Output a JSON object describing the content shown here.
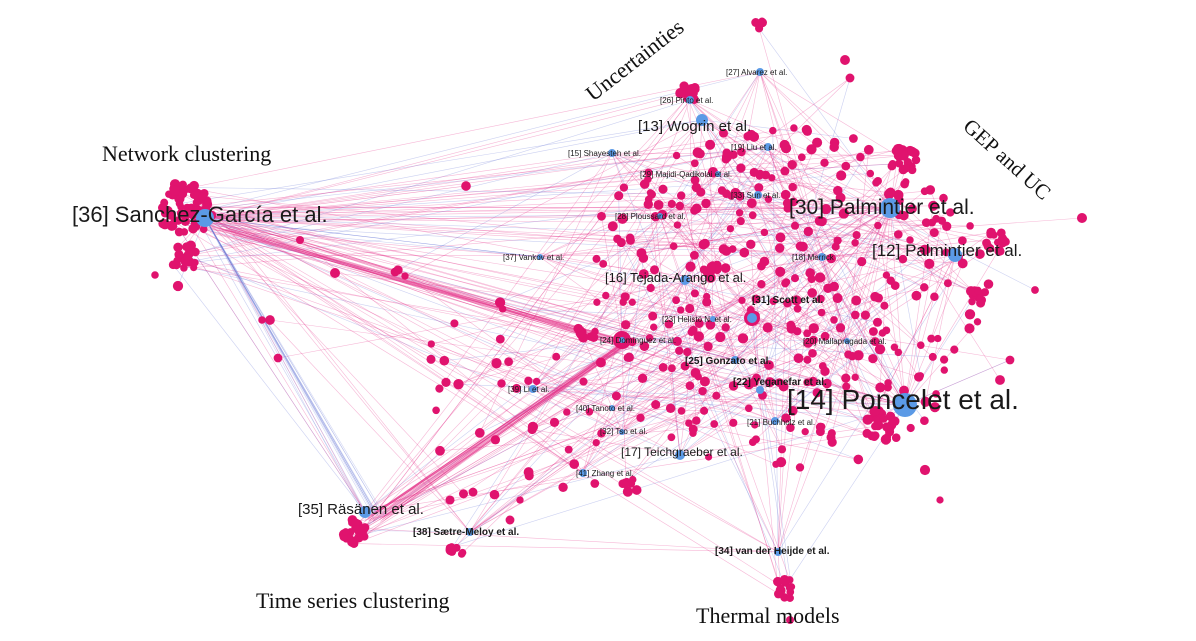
{
  "colors": {
    "cited_node": "#e0136e",
    "paper_node": "#5b9ae6",
    "edge_pink": "#e4328a",
    "edge_blue": "#6a79d8"
  },
  "cluster_labels": [
    {
      "id": "network-clustering",
      "text": "Network clustering"
    },
    {
      "id": "uncertainties",
      "text": "Uncertainties"
    },
    {
      "id": "gep-and-uc",
      "text": "GEP and UC"
    },
    {
      "id": "time-series-clustering",
      "text": "Time series clustering"
    },
    {
      "id": "thermal-models",
      "text": "Thermal models"
    }
  ],
  "papers": [
    {
      "id": "p36",
      "label": "[36] Sanchez-García et al."
    },
    {
      "id": "p14",
      "label": "[14] Poncelet et al."
    },
    {
      "id": "p30",
      "label": "[30] Palmintier et al."
    },
    {
      "id": "p12",
      "label": "[12] Palmintier et al."
    },
    {
      "id": "p13",
      "label": "[13] Wogrin et al."
    },
    {
      "id": "p16",
      "label": "[16] Tejada-Arango et al."
    },
    {
      "id": "p35",
      "label": "[35] Räsänen et al."
    },
    {
      "id": "p17",
      "label": "[17] Teichgraeber et al."
    },
    {
      "id": "p31",
      "label": "[31] Scott et al."
    },
    {
      "id": "p25",
      "label": "[25] Gonzato et al."
    },
    {
      "id": "p22",
      "label": "[22] Yeganefar et al."
    },
    {
      "id": "p38",
      "label": "[38] Sætre-Meloy et al."
    },
    {
      "id": "p34",
      "label": "[34] van der Heijde et al."
    },
    {
      "id": "p27",
      "label": "[27] Alvarez et al."
    },
    {
      "id": "p26",
      "label": "[26] Pinto et al."
    },
    {
      "id": "p15",
      "label": "[15] Shayesteh et al."
    },
    {
      "id": "p19",
      "label": "[19] Liu et al."
    },
    {
      "id": "p29",
      "label": "[29] Majidi-Qadikolai et al."
    },
    {
      "id": "p33",
      "label": "[33] Sun et al."
    },
    {
      "id": "p28",
      "label": "[28] Ploussard et al."
    },
    {
      "id": "p37",
      "label": "[37] Vankov et al."
    },
    {
      "id": "p18",
      "label": "[18] Merrick"
    },
    {
      "id": "p23",
      "label": "[23] Helistö N. et al."
    },
    {
      "id": "p24",
      "label": "[24] Domínguez et al."
    },
    {
      "id": "p20",
      "label": "[20] Mallapragada et al."
    },
    {
      "id": "p39",
      "label": "[39] Li et al."
    },
    {
      "id": "p40",
      "label": "[40] Tanoto et al."
    },
    {
      "id": "p32",
      "label": "[32] Tso et al."
    },
    {
      "id": "p21",
      "label": "[21] Buchholz et al."
    },
    {
      "id": "p41",
      "label": "[41] Zhang et al."
    }
  ]
}
